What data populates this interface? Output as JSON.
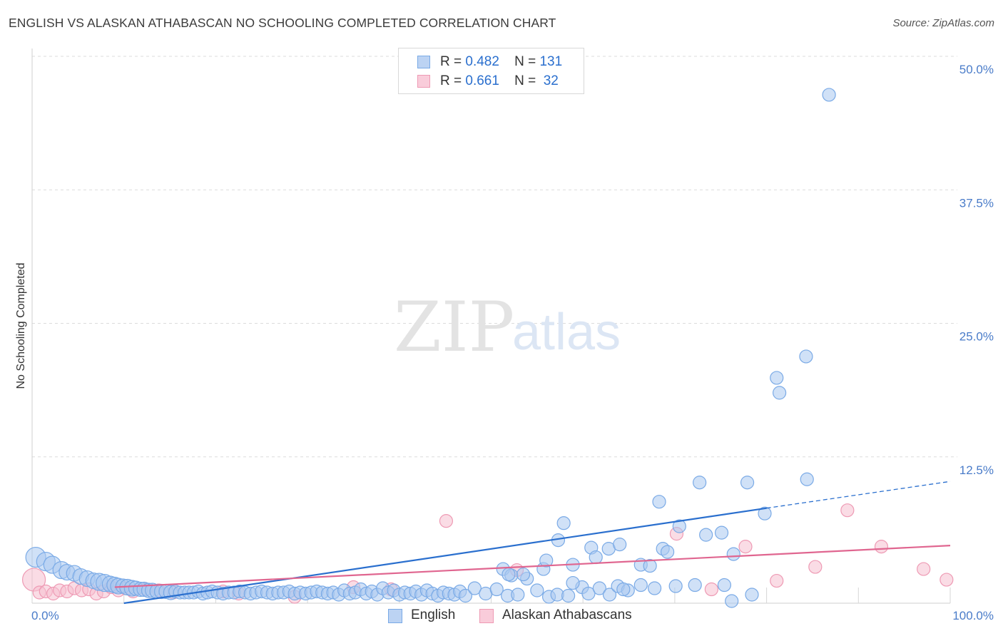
{
  "title": "ENGLISH VS ALASKAN ATHABASCAN NO SCHOOLING COMPLETED CORRELATION CHART",
  "source": "Source: ZipAtlas.com",
  "legend": {
    "rows": [
      {
        "r_label": "R =",
        "r_value": "0.482",
        "n_label": "N =",
        "n_value": "131"
      },
      {
        "r_label": "R =",
        "r_value": "0.661",
        "n_label": "N =",
        "n_value": "32"
      }
    ]
  },
  "watermark": {
    "zip": "ZIP",
    "atlas": "atlas"
  },
  "chart_data": {
    "type": "scatter",
    "ylabel": "No Schooling Completed",
    "xlabel": "",
    "xlim": [
      0,
      100
    ],
    "ylim": [
      0,
      50
    ],
    "x_ticks": [
      "0.0%",
      "100.0%"
    ],
    "y_ticks": [
      {
        "value": 50,
        "label": "50.0%"
      },
      {
        "value": 37.5,
        "label": "37.5%"
      },
      {
        "value": 25,
        "label": "25.0%"
      },
      {
        "value": 12.5,
        "label": "12.5%"
      }
    ],
    "grid": "horizontal dashed",
    "legend_placement": "bottom-center",
    "series": [
      {
        "name": "English",
        "color": "#7aaae6",
        "fill": "#a9c8f0",
        "trend_color": "#2a6fce",
        "trend": {
          "x0": 10,
          "y0": 0,
          "x1": 80,
          "y1": 8.9,
          "dash_to_x": 100,
          "dash_to_y": 11.4
        },
        "points": [
          [
            0.4,
            4.3,
            14
          ],
          [
            1.5,
            3.9,
            13
          ],
          [
            2.2,
            3.6,
            12
          ],
          [
            3.2,
            3.1,
            12
          ],
          [
            3.8,
            2.9,
            11
          ],
          [
            4.6,
            2.8,
            11
          ],
          [
            5.3,
            2.5,
            11
          ],
          [
            6,
            2.3,
            11
          ],
          [
            6.7,
            2.1,
            11
          ],
          [
            7.3,
            2,
            12
          ],
          [
            7.9,
            1.9,
            12
          ],
          [
            8.5,
            1.8,
            11
          ],
          [
            9,
            1.7,
            11
          ],
          [
            9.4,
            1.6,
            11
          ],
          [
            9.9,
            1.6,
            10
          ],
          [
            10.4,
            1.5,
            11
          ],
          [
            10.9,
            1.4,
            11
          ],
          [
            11.3,
            1.4,
            10
          ],
          [
            11.8,
            1.3,
            10
          ],
          [
            12.2,
            1.3,
            10
          ],
          [
            12.7,
            1.2,
            10
          ],
          [
            13.1,
            1.2,
            10
          ],
          [
            13.6,
            1.1,
            10
          ],
          [
            14.1,
            1.1,
            10
          ],
          [
            14.6,
            1.1,
            10
          ],
          [
            15.1,
            1,
            10
          ],
          [
            15.6,
            1.1,
            9
          ],
          [
            16.1,
            1,
            9
          ],
          [
            16.6,
            1,
            9
          ],
          [
            17.1,
            1,
            9
          ],
          [
            17.6,
            1,
            9
          ],
          [
            18.1,
            1.1,
            9
          ],
          [
            18.6,
            0.9,
            9
          ],
          [
            19.1,
            1,
            9
          ],
          [
            19.6,
            1.1,
            9
          ],
          [
            20.2,
            1,
            9
          ],
          [
            20.8,
            0.9,
            9
          ],
          [
            21.4,
            1,
            9
          ],
          [
            22,
            1,
            9
          ],
          [
            22.6,
            1.1,
            9
          ],
          [
            23.2,
            1,
            9
          ],
          [
            23.8,
            0.9,
            9
          ],
          [
            24.4,
            1,
            9
          ],
          [
            25,
            1.1,
            9
          ],
          [
            25.6,
            1,
            9
          ],
          [
            26.2,
            0.9,
            9
          ],
          [
            26.8,
            1,
            9
          ],
          [
            27.4,
            1,
            9
          ],
          [
            28,
            1.1,
            9
          ],
          [
            28.6,
            0.9,
            9
          ],
          [
            29.2,
            1,
            9
          ],
          [
            29.8,
            0.9,
            9
          ],
          [
            30.4,
            1,
            9
          ],
          [
            31,
            1.1,
            9
          ],
          [
            31.6,
            1,
            9
          ],
          [
            32.2,
            0.9,
            9
          ],
          [
            32.8,
            1,
            9
          ],
          [
            33.4,
            0.8,
            9
          ],
          [
            34,
            1.2,
            9
          ],
          [
            34.6,
            0.9,
            9
          ],
          [
            35.2,
            1,
            9
          ],
          [
            35.8,
            1.3,
            9
          ],
          [
            36.4,
            0.9,
            9
          ],
          [
            37,
            1.1,
            9
          ],
          [
            37.6,
            0.8,
            9
          ],
          [
            38.2,
            1.4,
            9
          ],
          [
            38.8,
            1,
            9
          ],
          [
            39.4,
            1.2,
            9
          ],
          [
            40,
            0.8,
            9
          ],
          [
            40.6,
            1,
            9
          ],
          [
            41.2,
            0.9,
            9
          ],
          [
            41.8,
            1.1,
            9
          ],
          [
            42.4,
            0.8,
            9
          ],
          [
            43,
            1.2,
            9
          ],
          [
            43.6,
            0.9,
            9
          ],
          [
            44.2,
            0.7,
            9
          ],
          [
            44.8,
            1,
            9
          ],
          [
            45.4,
            0.9,
            9
          ],
          [
            46,
            0.8,
            9
          ],
          [
            46.6,
            1.1,
            9
          ],
          [
            47.2,
            0.7,
            9
          ],
          [
            48.2,
            1.4,
            9
          ],
          [
            49.4,
            0.9,
            9
          ],
          [
            50.6,
            1.3,
            9
          ],
          [
            51.8,
            0.7,
            9
          ],
          [
            52.9,
            0.8,
            9
          ],
          [
            55,
            1.2,
            9
          ],
          [
            56.3,
            0.6,
            9
          ],
          [
            57.2,
            0.8,
            9
          ],
          [
            58.4,
            0.7,
            9
          ],
          [
            59.9,
            1.5,
            9
          ],
          [
            60.6,
            0.9,
            9
          ],
          [
            61.8,
            1.4,
            9
          ],
          [
            62.9,
            0.8,
            9
          ],
          [
            63.8,
            1.6,
            9
          ],
          [
            64.9,
            1.2,
            9
          ],
          [
            66.3,
            1.7,
            9
          ],
          [
            67.8,
            1.4,
            9
          ],
          [
            70.1,
            1.6,
            9
          ],
          [
            72.2,
            1.7,
            9
          ],
          [
            75.4,
            1.7,
            9
          ],
          [
            78.4,
            0.8,
            9
          ],
          [
            76.2,
            0.2,
            9
          ],
          [
            64.4,
            1.3,
            9
          ],
          [
            58.9,
            1.9,
            9
          ],
          [
            53.9,
            2.3,
            9
          ],
          [
            51.3,
            3.2,
            9
          ],
          [
            52.2,
            2.6,
            9
          ],
          [
            51.9,
            2.7,
            9
          ],
          [
            53.5,
            2.7,
            9
          ],
          [
            55.7,
            3.2,
            9
          ],
          [
            58.9,
            3.6,
            9
          ],
          [
            60.9,
            5.2,
            9
          ],
          [
            61.4,
            4.3,
            9
          ],
          [
            62.8,
            5.1,
            9
          ],
          [
            64,
            5.5,
            9
          ],
          [
            66.3,
            3.6,
            9
          ],
          [
            67.3,
            3.5,
            9
          ],
          [
            68.7,
            5.1,
            9
          ],
          [
            69.2,
            4.8,
            9
          ],
          [
            70.5,
            7.2,
            9
          ],
          [
            73.4,
            6.4,
            9
          ],
          [
            75.1,
            6.6,
            9
          ],
          [
            76.4,
            4.6,
            9
          ],
          [
            56,
            4,
            9
          ],
          [
            57.3,
            5.9,
            9
          ],
          [
            57.9,
            7.5,
            9
          ],
          [
            68.3,
            9.5,
            9
          ],
          [
            72.7,
            11.3,
            9
          ],
          [
            77.9,
            11.3,
            9
          ],
          [
            79.8,
            8.4,
            9
          ],
          [
            84.4,
            11.6,
            9
          ],
          [
            81.1,
            21.1,
            9
          ],
          [
            81.4,
            19.7,
            9
          ],
          [
            84.3,
            23.1,
            9
          ],
          [
            86.8,
            47.6,
            9
          ]
        ]
      },
      {
        "name": "Alaskan Athabascans",
        "color": "#ee9ab4",
        "fill": "#f6bfd0",
        "trend_color": "#e06690",
        "trend": {
          "x0": 9,
          "y0": 1.5,
          "x1": 100,
          "y1": 5.4
        },
        "points": [
          [
            0.2,
            2.2,
            16
          ],
          [
            0.8,
            1,
            9
          ],
          [
            1.5,
            1.1,
            9
          ],
          [
            2.3,
            0.9,
            9
          ],
          [
            3,
            1.2,
            9
          ],
          [
            3.8,
            1.1,
            9
          ],
          [
            4.6,
            1.4,
            9
          ],
          [
            5.4,
            1.2,
            9
          ],
          [
            6.2,
            1.3,
            9
          ],
          [
            7,
            0.9,
            9
          ],
          [
            7.8,
            1.1,
            9
          ],
          [
            8.6,
            1.5,
            9
          ],
          [
            9.4,
            1.2,
            9
          ],
          [
            10.2,
            1.4,
            9
          ],
          [
            11,
            1.1,
            9
          ],
          [
            12.4,
            1.3,
            9
          ],
          [
            13.8,
            1.2,
            9
          ],
          [
            15.4,
            1,
            9
          ],
          [
            20.8,
            1.1,
            9
          ],
          [
            22.5,
            0.9,
            9
          ],
          [
            28.6,
            0.6,
            9
          ],
          [
            35,
            1.5,
            9
          ],
          [
            39.1,
            1.3,
            9
          ],
          [
            45.1,
            7.7,
            9
          ],
          [
            52.8,
            3.1,
            9
          ],
          [
            70.2,
            6.5,
            9
          ],
          [
            77.7,
            5.3,
            9
          ],
          [
            74,
            1.3,
            9
          ],
          [
            81.1,
            2.1,
            9
          ],
          [
            85.3,
            3.4,
            9
          ],
          [
            88.8,
            8.7,
            9
          ],
          [
            92.5,
            5.3,
            9
          ],
          [
            97.1,
            3.2,
            9
          ],
          [
            99.6,
            2.2,
            9
          ]
        ]
      }
    ]
  }
}
